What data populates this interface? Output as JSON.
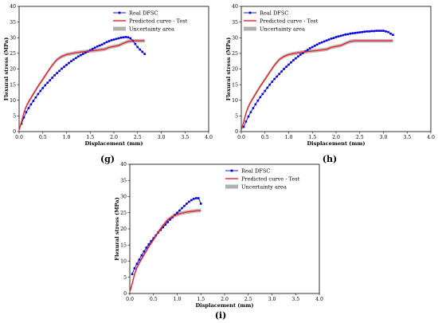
{
  "chart_data": [
    {
      "panel": "(g)",
      "type": "line",
      "xlabel": "Displacement (mm)",
      "ylabel": "Flexural stress (MPa)",
      "xlim": [
        0,
        4.0
      ],
      "ylim": [
        0,
        40
      ],
      "xticks": [
        "0.0",
        "0.5",
        "1.0",
        "1.5",
        "2.0",
        "2.5",
        "3.0",
        "3.5",
        "4.0"
      ],
      "yticks": [
        "0",
        "5",
        "10",
        "15",
        "20",
        "25",
        "30",
        "35",
        "40"
      ],
      "legend": {
        "position": "top-right",
        "entries": [
          "Real DFSC",
          "Predicted curve - Test",
          "Uncertainty area"
        ]
      },
      "series": [
        {
          "name": "Real DFSC",
          "color": "#0000dd",
          "marker": "square",
          "x": [
            0.05,
            0.1,
            0.15,
            0.2,
            0.25,
            0.3,
            0.35,
            0.4,
            0.45,
            0.5,
            0.55,
            0.6,
            0.65,
            0.7,
            0.75,
            0.8,
            0.85,
            0.9,
            0.95,
            1.0,
            1.05,
            1.1,
            1.15,
            1.2,
            1.25,
            1.3,
            1.35,
            1.4,
            1.45,
            1.5,
            1.55,
            1.6,
            1.65,
            1.7,
            1.75,
            1.8,
            1.85,
            1.9,
            1.95,
            2.0,
            2.05,
            2.1,
            2.15,
            2.2,
            2.25,
            2.3,
            2.35,
            2.4,
            2.45,
            2.5,
            2.55,
            2.6,
            2.65
          ],
          "y": [
            2.5,
            4.5,
            6.2,
            7.5,
            8.7,
            9.8,
            10.9,
            12.0,
            13.0,
            13.9,
            14.8,
            15.6,
            16.4,
            17.2,
            18.0,
            18.7,
            19.4,
            20.1,
            20.7,
            21.3,
            21.9,
            22.5,
            23.0,
            23.5,
            24.0,
            24.4,
            24.8,
            25.2,
            25.6,
            26.0,
            26.4,
            26.8,
            27.2,
            27.5,
            27.8,
            28.2,
            28.6,
            28.9,
            29.2,
            29.4,
            29.6,
            29.8,
            30.0,
            30.1,
            30.2,
            30.1,
            29.8,
            29.0,
            28.0,
            27.0,
            26.2,
            25.5,
            24.8
          ]
        },
        {
          "name": "Predicted curve - Test",
          "color": "#e8202a",
          "x": [
            0.0,
            0.05,
            0.1,
            0.15,
            0.2,
            0.3,
            0.4,
            0.5,
            0.6,
            0.7,
            0.8,
            0.9,
            1.0,
            1.2,
            1.4,
            1.6,
            1.8,
            1.9,
            2.0,
            2.1,
            2.2,
            2.3,
            2.4,
            2.5,
            2.6,
            2.65
          ],
          "y": [
            0.5,
            3.0,
            6.0,
            8.0,
            9.5,
            12.0,
            14.5,
            16.7,
            19.0,
            21.2,
            23.0,
            24.0,
            24.6,
            25.2,
            25.6,
            25.9,
            26.3,
            26.9,
            27.2,
            27.5,
            28.2,
            28.8,
            29.0,
            29.0,
            29.0,
            29.0
          ]
        }
      ]
    },
    {
      "panel": "(h)",
      "type": "line",
      "xlabel": "Displacement (mm)",
      "ylabel": "Flexural stress (MPa)",
      "xlim": [
        0,
        4.0
      ],
      "ylim": [
        0,
        40
      ],
      "xticks": [
        "0.0",
        "0.5",
        "1.0",
        "1.5",
        "2.0",
        "2.5",
        "3.0",
        "3.5",
        "4.0"
      ],
      "yticks": [
        "0",
        "5",
        "10",
        "15",
        "20",
        "25",
        "30",
        "35",
        "40"
      ],
      "legend": {
        "position": "top-left",
        "entries": [
          "Real DFSC",
          "Predicted curve - Test",
          "Uncertainty area"
        ]
      },
      "series": [
        {
          "name": "Real DFSC",
          "color": "#0000dd",
          "marker": "square",
          "x": [
            0.05,
            0.1,
            0.15,
            0.2,
            0.25,
            0.3,
            0.35,
            0.4,
            0.45,
            0.5,
            0.55,
            0.6,
            0.65,
            0.7,
            0.75,
            0.8,
            0.85,
            0.9,
            0.95,
            1.0,
            1.05,
            1.1,
            1.15,
            1.2,
            1.25,
            1.3,
            1.35,
            1.4,
            1.45,
            1.5,
            1.55,
            1.6,
            1.65,
            1.7,
            1.75,
            1.8,
            1.85,
            1.9,
            1.95,
            2.0,
            2.05,
            2.1,
            2.15,
            2.2,
            2.25,
            2.3,
            2.35,
            2.4,
            2.45,
            2.5,
            2.55,
            2.6,
            2.65,
            2.7,
            2.75,
            2.8,
            2.85,
            2.9,
            2.95,
            3.0,
            3.05,
            3.1,
            3.15,
            3.2
          ],
          "y": [
            1.5,
            3.2,
            4.8,
            6.2,
            7.5,
            8.7,
            9.9,
            11.0,
            12.0,
            13.0,
            14.0,
            15.0,
            15.9,
            16.8,
            17.6,
            18.4,
            19.2,
            20.0,
            20.7,
            21.4,
            22.1,
            22.8,
            23.4,
            24.0,
            24.6,
            25.1,
            25.6,
            26.1,
            26.6,
            27.0,
            27.4,
            27.8,
            28.2,
            28.5,
            28.8,
            29.1,
            29.4,
            29.7,
            29.9,
            30.2,
            30.4,
            30.6,
            30.8,
            31.0,
            31.1,
            31.3,
            31.4,
            31.5,
            31.6,
            31.7,
            31.8,
            31.9,
            32.0,
            32.0,
            32.1,
            32.1,
            32.2,
            32.2,
            32.2,
            32.2,
            32.0,
            31.8,
            31.3,
            30.9
          ]
        },
        {
          "name": "Predicted curve - Test",
          "color": "#e8202a",
          "x": [
            0.0,
            0.05,
            0.1,
            0.15,
            0.2,
            0.3,
            0.4,
            0.5,
            0.6,
            0.7,
            0.8,
            0.9,
            1.0,
            1.2,
            1.4,
            1.6,
            1.8,
            1.9,
            2.0,
            2.1,
            2.2,
            2.3,
            2.4,
            2.6,
            2.8,
            3.0,
            3.2
          ],
          "y": [
            0.5,
            3.0,
            6.0,
            8.0,
            9.5,
            12.0,
            14.5,
            16.7,
            19.0,
            21.2,
            23.0,
            24.0,
            24.6,
            25.2,
            25.6,
            25.9,
            26.3,
            26.9,
            27.2,
            27.5,
            28.2,
            28.8,
            29.0,
            29.0,
            29.0,
            29.0,
            29.0
          ]
        }
      ]
    },
    {
      "panel": "(i)",
      "type": "line",
      "xlabel": "Displacement (mm)",
      "ylabel": "Flexural stress (MPa)",
      "xlim": [
        0,
        4.0
      ],
      "ylim": [
        0,
        40
      ],
      "xticks": [
        "0.0",
        "0.5",
        "1.0",
        "1.5",
        "2.0",
        "2.5",
        "3.0",
        "3.5",
        "4.0"
      ],
      "yticks": [
        "0",
        "5",
        "10",
        "15",
        "20",
        "25",
        "30",
        "35",
        "40"
      ],
      "legend": {
        "position": "top-right",
        "entries": [
          "Real DFSC",
          "Predicted curve - Test",
          "Uncertainty area"
        ]
      },
      "series": [
        {
          "name": "Real DFSC",
          "color": "#0000dd",
          "marker": "square",
          "x": [
            0.05,
            0.1,
            0.15,
            0.2,
            0.25,
            0.3,
            0.35,
            0.4,
            0.45,
            0.5,
            0.55,
            0.6,
            0.65,
            0.7,
            0.75,
            0.8,
            0.85,
            0.9,
            0.95,
            1.0,
            1.05,
            1.1,
            1.15,
            1.2,
            1.25,
            1.3,
            1.35,
            1.4,
            1.45,
            1.5
          ],
          "y": [
            6.0,
            7.8,
            9.2,
            10.5,
            11.8,
            13.0,
            14.2,
            15.2,
            16.2,
            17.1,
            18.0,
            18.9,
            19.7,
            20.5,
            21.3,
            22.1,
            22.9,
            23.6,
            24.3,
            25.0,
            25.7,
            26.4,
            27.1,
            27.8,
            28.4,
            28.9,
            29.3,
            29.5,
            29.5,
            27.8
          ]
        },
        {
          "name": "Predicted curve - Test",
          "color": "#e8202a",
          "x": [
            0.0,
            0.05,
            0.1,
            0.15,
            0.2,
            0.3,
            0.4,
            0.5,
            0.6,
            0.7,
            0.8,
            0.9,
            1.0,
            1.1,
            1.2,
            1.3,
            1.4,
            1.5
          ],
          "y": [
            0.5,
            3.0,
            6.0,
            8.0,
            9.5,
            12.0,
            14.5,
            16.7,
            19.0,
            21.0,
            22.8,
            23.8,
            24.5,
            24.9,
            25.2,
            25.4,
            25.6,
            25.7
          ]
        }
      ]
    }
  ]
}
